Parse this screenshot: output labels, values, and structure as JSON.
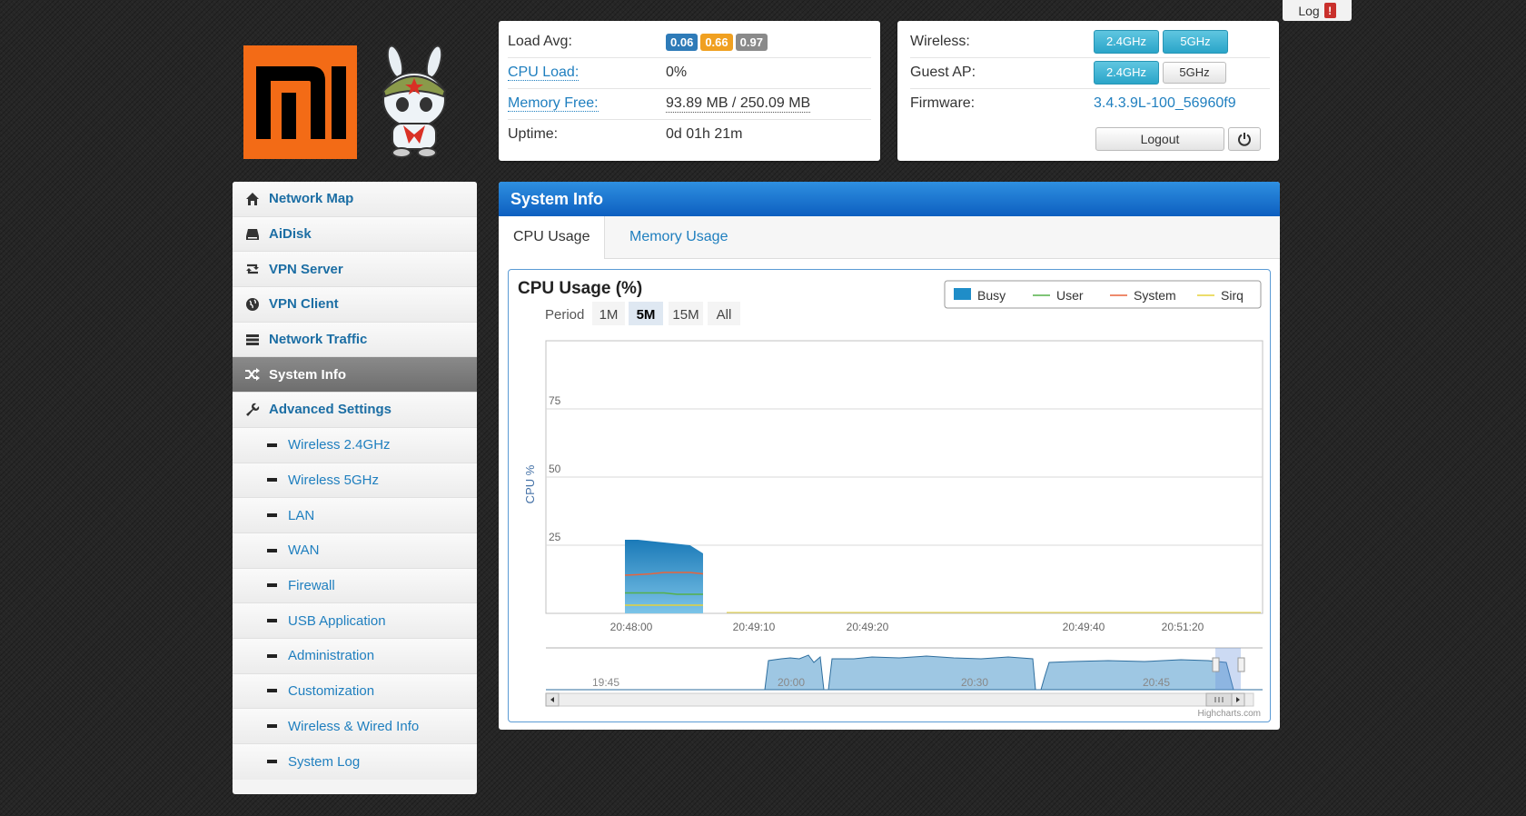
{
  "log_button": {
    "label": "Log",
    "badge": "!"
  },
  "status": {
    "load_avg": {
      "label": "Load Avg:",
      "values": [
        "0.06",
        "0.66",
        "0.97"
      ],
      "colors": [
        "#2e7bb8",
        "#f0a020",
        "#8a8a8a"
      ]
    },
    "cpu_load": {
      "label": "CPU Load:",
      "value": "0%"
    },
    "memory_free": {
      "label": "Memory Free:",
      "value": "93.89 MB / 250.09 MB"
    },
    "uptime": {
      "label": "Uptime:",
      "value": "0d 01h 21m"
    }
  },
  "wireless": {
    "wireless_label": "Wireless:",
    "wireless_buttons": [
      "2.4GHz",
      "5GHz"
    ],
    "guest_label": "Guest AP:",
    "guest_buttons": [
      "2.4GHz",
      "5GHz"
    ],
    "firmware_label": "Firmware:",
    "firmware_value": "3.4.3.9L-100_56960f9",
    "logout_label": "Logout"
  },
  "sidebar": {
    "main_items": [
      {
        "label": "Network Map",
        "icon": "home-icon"
      },
      {
        "label": "AiDisk",
        "icon": "disk-icon"
      },
      {
        "label": "VPN Server",
        "icon": "retweet-icon"
      },
      {
        "label": "VPN Client",
        "icon": "globe-icon"
      },
      {
        "label": "Network Traffic",
        "icon": "tasks-icon"
      },
      {
        "label": "System Info",
        "icon": "shuffle-icon",
        "active": true
      },
      {
        "label": "Advanced Settings",
        "icon": "wrench-icon"
      }
    ],
    "sub_items": [
      "Wireless 2.4GHz",
      "Wireless 5GHz",
      "LAN",
      "WAN",
      "Firewall",
      "USB Application",
      "Administration",
      "Customization",
      "Wireless & Wired Info",
      "System Log"
    ]
  },
  "panel": {
    "title": "System Info",
    "tabs": [
      "CPU Usage",
      "Memory Usage"
    ]
  },
  "chart_data": {
    "type": "area",
    "title": "CPU Usage (%)",
    "ylabel": "CPU %",
    "period_label": "Period",
    "period_options": [
      "1M",
      "5M",
      "15M",
      "All"
    ],
    "period_selected": "5M",
    "legend": [
      "Busy",
      "User",
      "System",
      "Sirq"
    ],
    "legend_position": "top-right",
    "colors": {
      "Busy": "#1f8dc8",
      "User": "#55b04a",
      "System": "#e8643c",
      "Sirq": "#e6d23a"
    },
    "y_ticks": [
      "25",
      "50",
      "75"
    ],
    "ylim": [
      0,
      100
    ],
    "x_ticks": [
      "20:48:00",
      "20:49:10",
      "20:49:20",
      "20:49:40",
      "20:51:20"
    ],
    "series": [
      {
        "name": "Busy",
        "values": [
          27,
          27,
          26.5,
          26,
          25.5,
          25,
          22
        ]
      },
      {
        "name": "System",
        "values": [
          14,
          14.2,
          14.5,
          15,
          15,
          15,
          14.5
        ]
      },
      {
        "name": "User",
        "values": [
          7.5,
          7.5,
          7.5,
          7.5,
          7,
          7,
          7
        ]
      },
      {
        "name": "Sirq",
        "values": [
          3,
          3,
          3,
          3,
          3,
          3,
          3
        ]
      }
    ],
    "navigator_ticks": [
      "19:45",
      "20:00",
      "20:30",
      "20:45"
    ],
    "credit": "Highcharts.com"
  }
}
